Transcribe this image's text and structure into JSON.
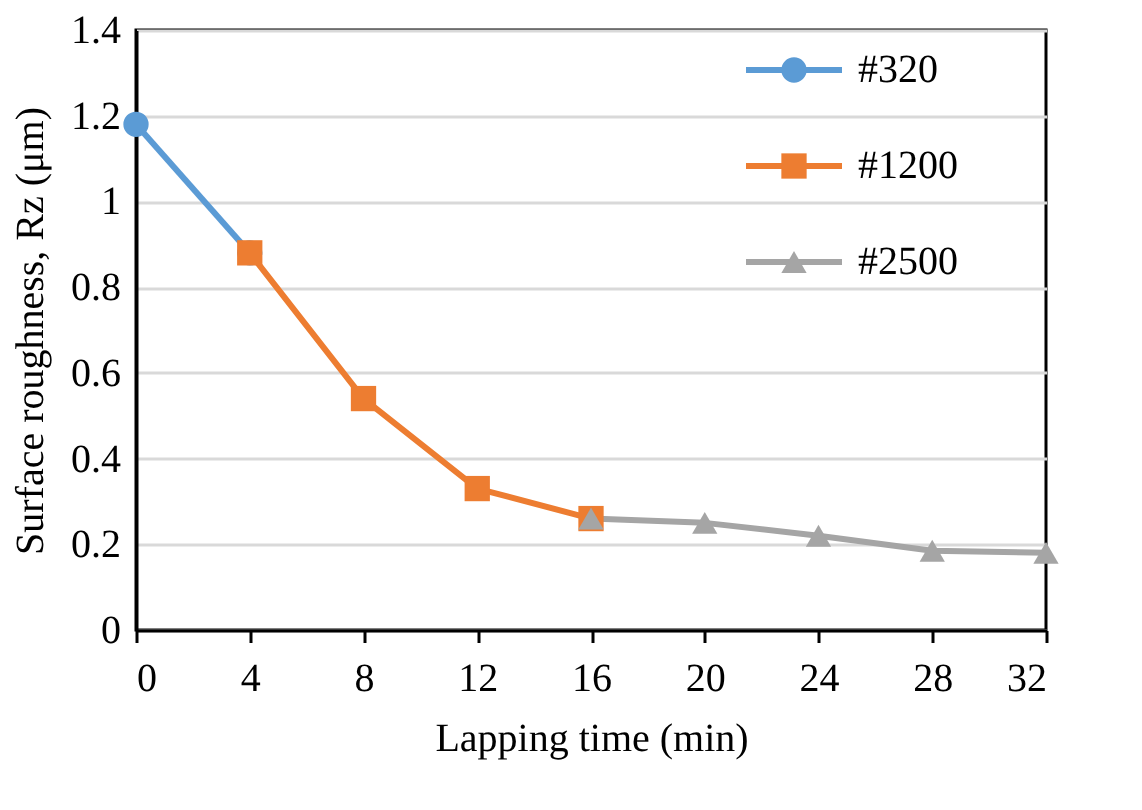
{
  "chart_data": {
    "type": "line",
    "xlabel": "Lapping time (min)",
    "ylabel": "Surface roughness, Rz (μm)",
    "series": [
      {
        "name": "#320",
        "color": "#5b9bd5",
        "marker": "circle",
        "x": [
          0,
          4
        ],
        "values": [
          1.18,
          0.88
        ]
      },
      {
        "name": "#1200",
        "color": "#ed7d31",
        "marker": "square",
        "x": [
          4,
          8,
          12,
          16
        ],
        "values": [
          0.88,
          0.54,
          0.33,
          0.26
        ]
      },
      {
        "name": "#2500",
        "color": "#a5a5a5",
        "marker": "triangle",
        "x": [
          16,
          20,
          24,
          28,
          32
        ],
        "values": [
          0.26,
          0.25,
          0.22,
          0.185,
          0.18
        ]
      }
    ],
    "xlim": [
      0,
      32
    ],
    "xticks": [
      0,
      4,
      8,
      12,
      16,
      20,
      24,
      28,
      32
    ],
    "ylim": [
      0,
      1.4
    ],
    "yticks": [
      0,
      0.2,
      0.4,
      0.6,
      0.8,
      1,
      1.2,
      1.4
    ],
    "grid": "y",
    "legend": "top right",
    "line_style": "solid"
  }
}
